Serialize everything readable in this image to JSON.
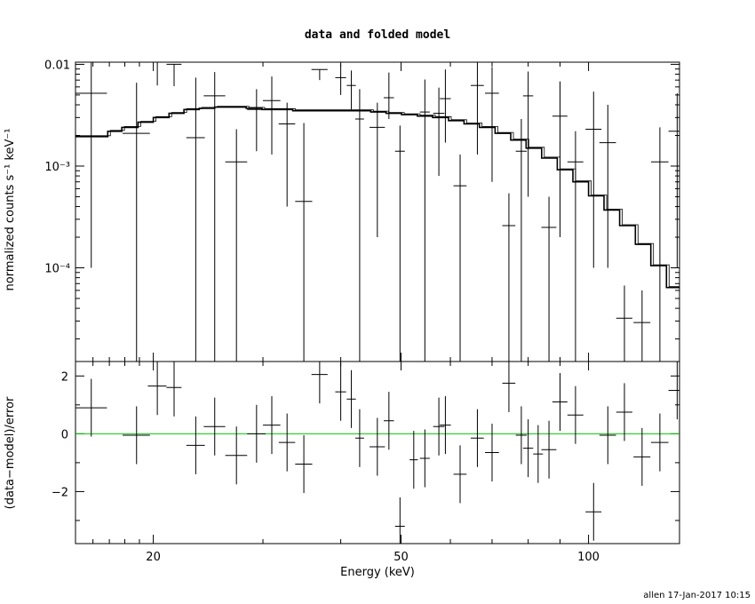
{
  "chart_data": [
    {
      "panel": "top",
      "type": "scatter",
      "title": "data and folded model",
      "xlabel": "",
      "ylabel": "normalized counts s⁻¹ keV⁻¹",
      "xscale": "log",
      "yscale": "log",
      "xlim": [
        15,
        140
      ],
      "ylim": [
        1.2e-05,
        0.0105
      ],
      "x_ticks": [
        20,
        50,
        100
      ],
      "y_tick_labels": [
        "0.01",
        "10⁻³",
        "10⁻⁴"
      ],
      "y_tick_values": [
        0.01,
        0.001,
        0.0001
      ],
      "grid": false,
      "series": [
        {
          "kind": "data_with_errors",
          "x": [
            15.9,
            18.8,
            20.3,
            21.6,
            23.4,
            25.1,
            27.2,
            29.3,
            31.0,
            32.8,
            34.9,
            37.0,
            40.0,
            41.6,
            42.9,
            45.8,
            47.8,
            49.8,
            54.6,
            57.5,
            58.9,
            62.2,
            66.3,
            70.0,
            74.5,
            78.0,
            80.0,
            86.4,
            90.0,
            95.3,
            101.9,
            107.4,
            114.2,
            121.9,
            130.2,
            138.8
          ],
          "xerr": [
            0.95,
            0.95,
            0.7,
            0.6,
            0.8,
            1.0,
            1.1,
            1.0,
            1.0,
            1.0,
            1.1,
            1.1,
            0.8,
            0.7,
            0.7,
            1.3,
            0.9,
            0.9,
            1.0,
            1.2,
            1.2,
            1.5,
            1.6,
            1.8,
            1.8,
            1.6,
            1.5,
            2.4,
            2.5,
            2.8,
            3.0,
            3.3,
            3.4,
            3.8,
            4.2,
            4.4
          ],
          "y": [
            0.0052,
            0.0021,
            0.0107,
            0.01,
            0.0019,
            0.0049,
            0.0011,
            0.0036,
            0.0044,
            0.0026,
            0.00045,
            0.0089,
            0.0074,
            0.0062,
            0.0029,
            0.0024,
            0.0047,
            0.0014,
            0.0034,
            0.0033,
            0.0046,
            0.00064,
            0.0062,
            0.0052,
            0.00026,
            0.0014,
            0.0049,
            0.00025,
            0.0031,
            0.0011,
            0.0023,
            0.0017,
            3.2e-05,
            2.9e-05,
            0.0011,
            0.0022
          ],
          "yerr_lo": [
            0.0051,
            0.0021,
            0.0045,
            0.0039,
            0.0019,
            0.0049,
            0.0011,
            0.0022,
            0.0031,
            0.0022,
            0.00045,
            0.0019,
            0.0024,
            0.0026,
            0.0029,
            0.0022,
            0.0018,
            0.0014,
            0.0034,
            0.0025,
            0.0029,
            0.00064,
            0.0049,
            0.0045,
            0.00026,
            0.0014,
            0.0044,
            0.00025,
            0.0029,
            0.0011,
            0.0022,
            0.0016,
            3.2e-05,
            2.9e-05,
            0.0011,
            0.0021
          ],
          "yerr_hi": [
            0.006,
            0.0045,
            0.0,
            0.0,
            0.0055,
            0.0035,
            0.0012,
            0.0021,
            0.0032,
            0.0016,
            0.0022,
            0.0,
            0.0025,
            0.0025,
            0.0028,
            0.0018,
            0.0036,
            0.0011,
            0.0037,
            0.0026,
            0.0043,
            0.00066,
            0.0056,
            0.0042,
            0.00028,
            0.0015,
            0.0036,
            0.00025,
            0.0037,
            0.0011,
            0.0031,
            0.0023,
            3.5e-05,
            3.1e-05,
            0.0013,
            0.003
          ]
        },
        {
          "kind": "folded_model_step",
          "x": [
            15.0,
            16.9,
            17.8,
            18.9,
            20.0,
            21.2,
            22.4,
            23.7,
            25.1,
            26.6,
            28.2,
            29.9,
            31.6,
            33.5,
            35.5,
            37.6,
            39.8,
            42.2,
            44.7,
            47.3,
            50.1,
            53.1,
            56.2,
            59.6,
            63.1,
            66.8,
            70.8,
            75.0,
            79.4,
            84.1,
            89.1,
            94.4,
            100.0,
            105.9,
            112.2,
            118.9,
            125.9,
            133.4,
            140.0
          ],
          "y": [
            0.00195,
            0.0022,
            0.0024,
            0.0027,
            0.003,
            0.0033,
            0.0036,
            0.0037,
            0.0038,
            0.0038,
            0.0037,
            0.0036,
            0.0036,
            0.0035,
            0.0035,
            0.0035,
            0.0035,
            0.0035,
            0.0034,
            0.0033,
            0.0032,
            0.0031,
            0.003,
            0.0028,
            0.0026,
            0.0024,
            0.0021,
            0.0018,
            0.0015,
            0.0012,
            0.00092,
            0.0007,
            0.00051,
            0.00037,
            0.00026,
            0.00017,
            0.000105,
            6.4e-05,
            4.2e-05
          ]
        }
      ]
    },
    {
      "panel": "bottom",
      "type": "scatter",
      "xlabel": "Energy (keV)",
      "ylabel": "(data−model)/error",
      "xscale": "log",
      "xlim": [
        15,
        140
      ],
      "ylim": [
        -3.8,
        2.5
      ],
      "x_ticks": [
        20,
        50,
        100
      ],
      "y_ticks": [
        -2,
        0,
        2
      ],
      "zero_line_color": "#00cc00",
      "grid": false,
      "series": [
        {
          "kind": "residuals",
          "x": [
            15.9,
            18.8,
            20.3,
            21.6,
            23.4,
            25.1,
            27.2,
            29.3,
            31.0,
            32.8,
            34.9,
            37.0,
            40.0,
            41.6,
            42.9,
            45.8,
            47.8,
            49.8,
            52.4,
            54.6,
            57.5,
            58.9,
            62.2,
            66.3,
            70.0,
            74.5,
            78.0,
            80.0,
            83.0,
            86.4,
            90.0,
            95.3,
            101.9,
            107.4,
            114.2,
            121.9,
            130.2,
            138.8
          ],
          "xerr": [
            0.95,
            0.95,
            0.7,
            0.6,
            0.8,
            1.0,
            1.1,
            1.0,
            1.0,
            1.0,
            1.1,
            1.1,
            0.8,
            0.7,
            0.7,
            1.3,
            0.9,
            0.9,
            0.8,
            1.0,
            1.2,
            1.2,
            1.5,
            1.6,
            1.8,
            1.8,
            1.6,
            1.5,
            1.5,
            2.4,
            2.5,
            2.8,
            3.0,
            3.3,
            3.4,
            3.8,
            4.2,
            4.4
          ],
          "y": [
            0.9,
            -0.05,
            1.65,
            1.6,
            -0.4,
            0.25,
            -0.75,
            0.0,
            0.3,
            -0.3,
            -1.05,
            2.05,
            1.45,
            1.2,
            -0.15,
            -0.45,
            0.45,
            -3.2,
            -0.9,
            -0.85,
            0.25,
            0.3,
            -1.4,
            -0.15,
            -0.65,
            1.75,
            -0.05,
            -0.5,
            -0.7,
            -0.55,
            1.1,
            0.65,
            -2.7,
            -0.05,
            0.75,
            -0.8,
            -0.3,
            1.5
          ],
          "err": [
            1.0,
            1.0,
            1.0,
            1.0,
            1.0,
            1.0,
            1.0,
            1.0,
            1.0,
            1.0,
            1.0,
            1.0,
            1.0,
            1.0,
            1.0,
            1.0,
            1.0,
            1.0,
            1.0,
            1.0,
            1.0,
            1.0,
            1.0,
            1.0,
            1.0,
            1.0,
            1.0,
            1.0,
            1.0,
            1.0,
            1.0,
            1.0,
            1.0,
            1.0,
            1.0,
            1.0,
            1.0,
            1.0
          ]
        }
      ]
    }
  ],
  "footer": "allen 17-Jan-2017 10:15"
}
